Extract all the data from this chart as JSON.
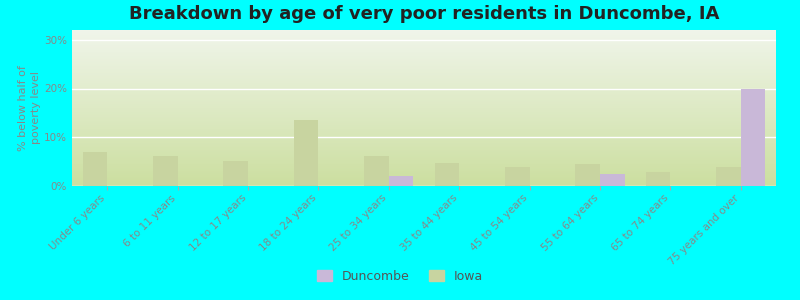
{
  "title": "Breakdown by age of very poor residents in Duncombe, IA",
  "ylabel": "% below half of\npoverty level",
  "categories": [
    "Under 6 years",
    "6 to 11 years",
    "12 to 17 years",
    "18 to 24 years",
    "25 to 34 years",
    "35 to 44 years",
    "45 to 54 years",
    "55 to 64 years",
    "65 to 74 years",
    "75 years and over"
  ],
  "duncombe_values": [
    0,
    0,
    0,
    0,
    2.0,
    0,
    0,
    2.5,
    0,
    20.0
  ],
  "iowa_values": [
    7.0,
    6.2,
    5.2,
    13.5,
    6.2,
    4.8,
    3.8,
    4.5,
    2.8,
    4.0
  ],
  "duncombe_color": "#c9b8d8",
  "iowa_color": "#c8d4a0",
  "background_color": "#00ffff",
  "ylim": [
    0,
    32
  ],
  "yticks": [
    0,
    10,
    20,
    30
  ],
  "ytick_labels": [
    "0%",
    "10%",
    "20%",
    "30%"
  ],
  "bar_width": 0.35,
  "title_fontsize": 13,
  "axis_label_fontsize": 8,
  "tick_fontsize": 7.5,
  "legend_fontsize": 9,
  "tick_color": "#888888",
  "grid_color": "#ffffff",
  "plot_grad_bottom": "#ccdfa0",
  "plot_grad_top": "#f0f5ea"
}
